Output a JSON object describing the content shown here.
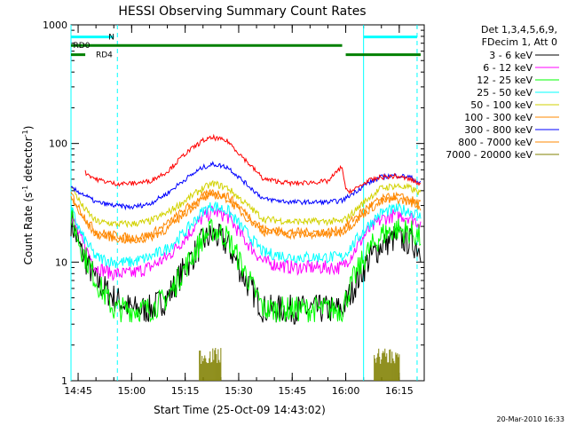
{
  "colors": {
    "axis": "#000000",
    "black": "#000000",
    "magenta": "#ff00ff",
    "green": "#00ff00",
    "cyan": "#00ffff",
    "yellow": "#d2d200",
    "orange": "#ff8800",
    "blue": "#0000ff",
    "red": "#ff0000",
    "olive": "#808000",
    "flag_green": "#008000",
    "flag_cyan": "#00ffff"
  },
  "chart_data": {
    "type": "line",
    "title": "HESSI Observing Summary Count Rates",
    "xlabel": "Start Time (25-Oct-09 14:43:02)",
    "ylabel": "Count Rate (s",
    "ylabel_sup1": "-1",
    "ylabel_mid": " detector",
    "ylabel_sup2": "-1",
    "ylabel_end": ")",
    "y_scale": "log",
    "ylim": [
      1,
      1000
    ],
    "xlim": [
      "14:43",
      "16:22"
    ],
    "x_ticks": [
      "14:45",
      "15:00",
      "15:15",
      "15:30",
      "15:45",
      "16:00",
      "16:15"
    ],
    "y_ticks": [
      "1",
      "10",
      "100",
      "1000"
    ],
    "legend_header": [
      "Det 1,3,4,5,6,9,",
      "FDecim 1, Att 0"
    ],
    "legend_position": "right",
    "series": [
      {
        "name": "3 - 6 keV",
        "color": "black",
        "points": [
          [
            "14:43",
            22
          ],
          [
            "14:46",
            12
          ],
          [
            "14:50",
            7
          ],
          [
            "14:55",
            5
          ],
          [
            "15:00",
            4
          ],
          [
            "15:05",
            4
          ],
          [
            "15:10",
            5
          ],
          [
            "15:15",
            9
          ],
          [
            "15:20",
            15
          ],
          [
            "15:23",
            17
          ],
          [
            "15:27",
            14
          ],
          [
            "15:32",
            7
          ],
          [
            "15:37",
            4
          ],
          [
            "15:45",
            4
          ],
          [
            "15:55",
            4
          ],
          [
            "15:59",
            4
          ],
          [
            "16:02",
            6
          ],
          [
            "16:06",
            10
          ],
          [
            "16:10",
            14
          ],
          [
            "16:14",
            16
          ],
          [
            "16:18",
            15
          ],
          [
            "16:21",
            13
          ]
        ]
      },
      {
        "name": "6 - 12 keV",
        "color": "magenta",
        "points": [
          [
            "14:43",
            25
          ],
          [
            "14:46",
            15
          ],
          [
            "14:50",
            9
          ],
          [
            "14:55",
            8
          ],
          [
            "15:00",
            8
          ],
          [
            "15:05",
            9
          ],
          [
            "15:10",
            11
          ],
          [
            "15:15",
            16
          ],
          [
            "15:20",
            24
          ],
          [
            "15:23",
            27
          ],
          [
            "15:27",
            24
          ],
          [
            "15:32",
            15
          ],
          [
            "15:37",
            10
          ],
          [
            "15:45",
            9
          ],
          [
            "15:55",
            9
          ],
          [
            "15:59",
            9
          ],
          [
            "16:02",
            12
          ],
          [
            "16:06",
            18
          ],
          [
            "16:10",
            23
          ],
          [
            "16:14",
            25
          ],
          [
            "16:18",
            24
          ],
          [
            "16:21",
            21
          ]
        ]
      },
      {
        "name": "12 - 25 keV",
        "color": "green",
        "points": [
          [
            "14:43",
            24
          ],
          [
            "14:46",
            13
          ],
          [
            "14:50",
            7
          ],
          [
            "14:55",
            4
          ],
          [
            "15:00",
            4
          ],
          [
            "15:05",
            4
          ],
          [
            "15:10",
            5
          ],
          [
            "15:15",
            9
          ],
          [
            "15:20",
            16
          ],
          [
            "15:23",
            19
          ],
          [
            "15:27",
            16
          ],
          [
            "15:32",
            8
          ],
          [
            "15:37",
            4
          ],
          [
            "15:45",
            4
          ],
          [
            "15:55",
            4
          ],
          [
            "15:59",
            4
          ],
          [
            "16:02",
            7
          ],
          [
            "16:06",
            12
          ],
          [
            "16:10",
            17
          ],
          [
            "16:14",
            19
          ],
          [
            "16:18",
            18
          ],
          [
            "16:21",
            16
          ]
        ]
      },
      {
        "name": "25 - 50 keV",
        "color": "cyan",
        "points": [
          [
            "14:43",
            28
          ],
          [
            "14:46",
            17
          ],
          [
            "14:50",
            11
          ],
          [
            "14:55",
            10
          ],
          [
            "15:00",
            10
          ],
          [
            "15:05",
            11
          ],
          [
            "15:10",
            13
          ],
          [
            "15:15",
            18
          ],
          [
            "15:20",
            27
          ],
          [
            "15:23",
            30
          ],
          [
            "15:27",
            27
          ],
          [
            "15:32",
            18
          ],
          [
            "15:37",
            12
          ],
          [
            "15:45",
            11
          ],
          [
            "15:55",
            11
          ],
          [
            "15:59",
            11
          ],
          [
            "16:02",
            14
          ],
          [
            "16:06",
            20
          ],
          [
            "16:10",
            26
          ],
          [
            "16:14",
            28
          ],
          [
            "16:18",
            27
          ],
          [
            "16:21",
            24
          ]
        ]
      },
      {
        "name": "50 - 100 keV",
        "color": "yellow",
        "points": [
          [
            "14:43",
            45
          ],
          [
            "14:46",
            30
          ],
          [
            "14:50",
            22
          ],
          [
            "14:55",
            21
          ],
          [
            "15:00",
            21
          ],
          [
            "15:05",
            22
          ],
          [
            "15:10",
            26
          ],
          [
            "15:15",
            33
          ],
          [
            "15:20",
            42
          ],
          [
            "15:23",
            46
          ],
          [
            "15:27",
            42
          ],
          [
            "15:32",
            31
          ],
          [
            "15:37",
            23
          ],
          [
            "15:45",
            22
          ],
          [
            "15:55",
            22
          ],
          [
            "15:59",
            22
          ],
          [
            "16:02",
            26
          ],
          [
            "16:06",
            34
          ],
          [
            "16:10",
            42
          ],
          [
            "16:14",
            44
          ],
          [
            "16:18",
            42
          ],
          [
            "16:21",
            38
          ]
        ]
      },
      {
        "name": "100 - 300 keV",
        "color": "orange",
        "points": [
          [
            "14:43",
            38
          ],
          [
            "14:46",
            26
          ],
          [
            "14:50",
            18
          ],
          [
            "14:55",
            17
          ],
          [
            "15:00",
            16
          ],
          [
            "15:05",
            17
          ],
          [
            "15:10",
            21
          ],
          [
            "15:15",
            28
          ],
          [
            "15:20",
            36
          ],
          [
            "15:23",
            39
          ],
          [
            "15:27",
            36
          ],
          [
            "15:32",
            26
          ],
          [
            "15:37",
            19
          ],
          [
            "15:45",
            18
          ],
          [
            "15:55",
            18
          ],
          [
            "15:59",
            19
          ],
          [
            "16:02",
            23
          ],
          [
            "16:06",
            29
          ],
          [
            "16:10",
            34
          ],
          [
            "16:14",
            36
          ],
          [
            "16:18",
            34
          ],
          [
            "16:21",
            31
          ]
        ]
      },
      {
        "name": "300 - 800 keV",
        "color": "blue",
        "points": [
          [
            "14:43",
            42
          ],
          [
            "14:46",
            38
          ],
          [
            "14:50",
            32
          ],
          [
            "14:55",
            30
          ],
          [
            "15:00",
            29
          ],
          [
            "15:05",
            31
          ],
          [
            "15:10",
            38
          ],
          [
            "15:15",
            50
          ],
          [
            "15:20",
            63
          ],
          [
            "15:23",
            67
          ],
          [
            "15:27",
            63
          ],
          [
            "15:32",
            46
          ],
          [
            "15:37",
            34
          ],
          [
            "15:45",
            32
          ],
          [
            "15:55",
            32
          ],
          [
            "15:59",
            33
          ],
          [
            "16:02",
            38
          ],
          [
            "16:06",
            46
          ],
          [
            "16:10",
            52
          ],
          [
            "16:14",
            54
          ],
          [
            "16:18",
            52
          ],
          [
            "16:21",
            46
          ]
        ]
      },
      {
        "name": "800 - 7000 keV",
        "color": "orange",
        "points": [
          [
            "14:43",
            35
          ],
          [
            "14:46",
            24
          ],
          [
            "14:50",
            17
          ],
          [
            "14:55",
            16
          ],
          [
            "15:00",
            15
          ],
          [
            "15:05",
            16
          ],
          [
            "15:10",
            19
          ],
          [
            "15:15",
            26
          ],
          [
            "15:20",
            34
          ],
          [
            "15:23",
            37
          ],
          [
            "15:27",
            34
          ],
          [
            "15:32",
            24
          ],
          [
            "15:37",
            18
          ],
          [
            "15:45",
            17
          ],
          [
            "15:55",
            17
          ],
          [
            "15:59",
            18
          ],
          [
            "16:02",
            21
          ],
          [
            "16:06",
            27
          ],
          [
            "16:10",
            32
          ],
          [
            "16:14",
            34
          ],
          [
            "16:18",
            32
          ],
          [
            "16:21",
            29
          ]
        ]
      },
      {
        "name": "7000 - 20000 keV",
        "color": "olive",
        "points": []
      }
    ],
    "red_curve": {
      "color": "red",
      "points": [
        [
          "14:47",
          57
        ],
        [
          "14:50",
          50
        ],
        [
          "14:55",
          46
        ],
        [
          "15:00",
          46
        ],
        [
          "15:05",
          48
        ],
        [
          "15:10",
          58
        ],
        [
          "15:15",
          82
        ],
        [
          "15:20",
          106
        ],
        [
          "15:23",
          112
        ],
        [
          "15:27",
          104
        ],
        [
          "15:32",
          72
        ],
        [
          "15:37",
          50
        ],
        [
          "15:45",
          46
        ],
        [
          "15:55",
          48
        ],
        [
          "15:59",
          64
        ],
        [
          "16:00",
          40
        ],
        [
          "16:02",
          40
        ],
        [
          "16:06",
          48
        ],
        [
          "16:10",
          52
        ],
        [
          "16:14",
          53
        ],
        [
          "16:18",
          50
        ],
        [
          "16:21",
          45
        ]
      ]
    },
    "olive_bursts": [
      {
        "start": "15:19",
        "end": "15:25",
        "top": 1.9
      },
      {
        "start": "16:08",
        "end": "16:15",
        "top": 1.9
      }
    ],
    "flags": [
      {
        "label": "RD0",
        "color": "flag_green",
        "level": 670,
        "segments": [
          [
            "14:43",
            "15:59"
          ]
        ]
      },
      {
        "label": "RD4",
        "color": "flag_green",
        "level": 560,
        "segments": [
          [
            "14:43",
            "14:47"
          ],
          [
            "16:00",
            "16:21"
          ]
        ]
      },
      {
        "label": "N",
        "color": "flag_cyan",
        "level": 790,
        "segments": [
          [
            "14:43",
            "14:55"
          ],
          [
            "16:05",
            "16:20"
          ]
        ]
      }
    ],
    "vertical_markers": [
      {
        "time": "14:43",
        "style": "solid",
        "color": "flag_cyan"
      },
      {
        "time": "14:56",
        "style": "dashed",
        "color": "flag_cyan"
      },
      {
        "time": "16:05",
        "style": "solid",
        "color": "flag_cyan"
      },
      {
        "time": "16:20",
        "style": "dashed",
        "color": "flag_cyan"
      }
    ]
  },
  "footer_timestamp": "20-Mar-2010 16:33"
}
